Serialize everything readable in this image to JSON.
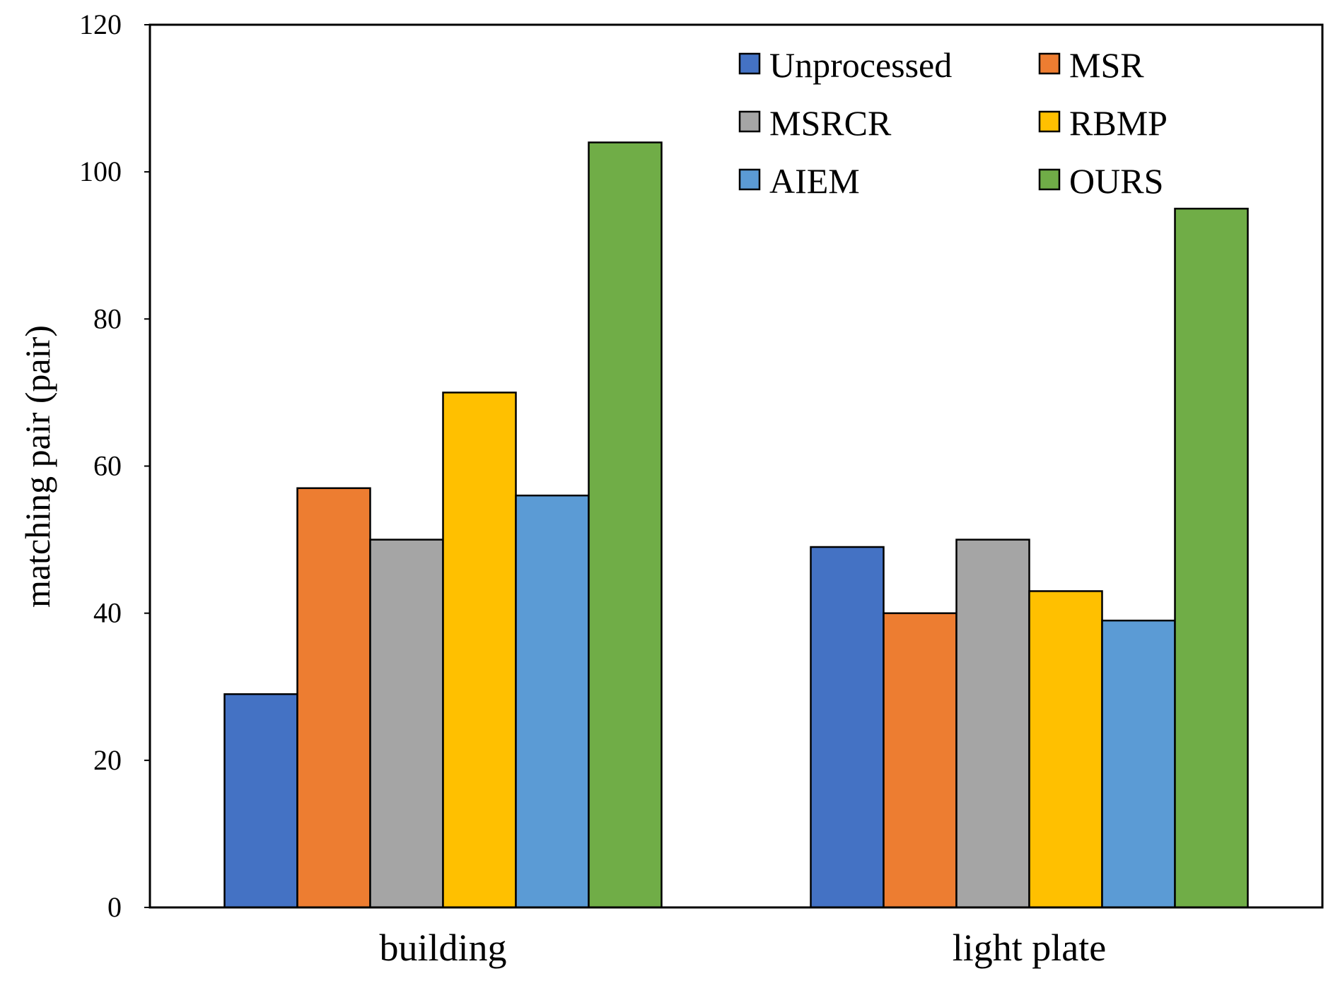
{
  "chart_data": {
    "type": "bar",
    "title": "",
    "xlabel": "",
    "ylabel": "matching pair (pair)",
    "ylim": [
      0,
      120
    ],
    "yticks": [
      0,
      20,
      40,
      60,
      80,
      100,
      120
    ],
    "grid": false,
    "legend_position": "top-right",
    "categories": [
      "building",
      "light plate"
    ],
    "series": [
      {
        "name": "Unprocessed",
        "color": "#4472C4",
        "values": [
          29,
          49
        ]
      },
      {
        "name": "MSR",
        "color": "#ED7D31",
        "values": [
          57,
          40
        ]
      },
      {
        "name": "MSRCR",
        "color": "#A5A5A5",
        "values": [
          50,
          50
        ]
      },
      {
        "name": "RBMP",
        "color": "#FFC000",
        "values": [
          70,
          43
        ]
      },
      {
        "name": "AIEM",
        "color": "#5B9BD5",
        "values": [
          56,
          39
        ]
      },
      {
        "name": "OURS",
        "color": "#70AD47",
        "values": [
          104,
          95
        ]
      }
    ]
  }
}
